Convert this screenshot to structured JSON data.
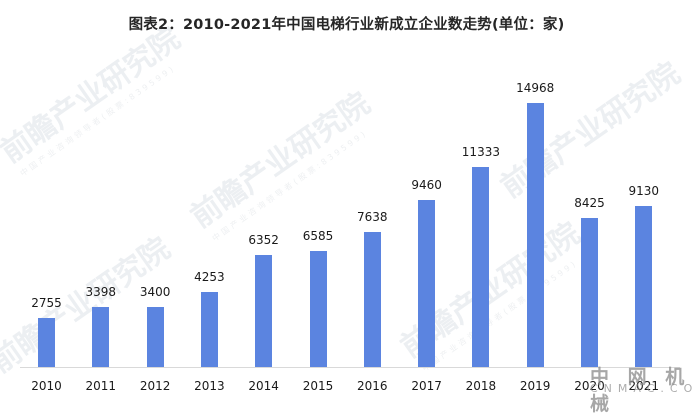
{
  "title": "图表2：2010-2021年中国电梯行业新成立企业数走势(单位：家)",
  "chart_data": {
    "type": "bar",
    "title": "图表2：2010-2021年中国电梯行业新成立企业数走势(单位：家)",
    "xlabel": "",
    "ylabel": "",
    "unit": "家",
    "categories": [
      "2010",
      "2011",
      "2012",
      "2013",
      "2014",
      "2015",
      "2016",
      "2017",
      "2018",
      "2019",
      "2020",
      "2021"
    ],
    "values": [
      2755,
      3398,
      3400,
      4253,
      6352,
      6585,
      7638,
      9460,
      11333,
      14968,
      8425,
      9130
    ],
    "ylim": [
      0,
      15000
    ],
    "grid": false,
    "legend": "none",
    "bar_color": "#5b84e0",
    "data_labels": true
  },
  "watermarks": {
    "main": "前瞻产业研究院",
    "sub": "中国产业咨询领导者(股票:839599)",
    "brand": "中 网 机 械",
    "brand_url": "CNMAC.COM"
  }
}
